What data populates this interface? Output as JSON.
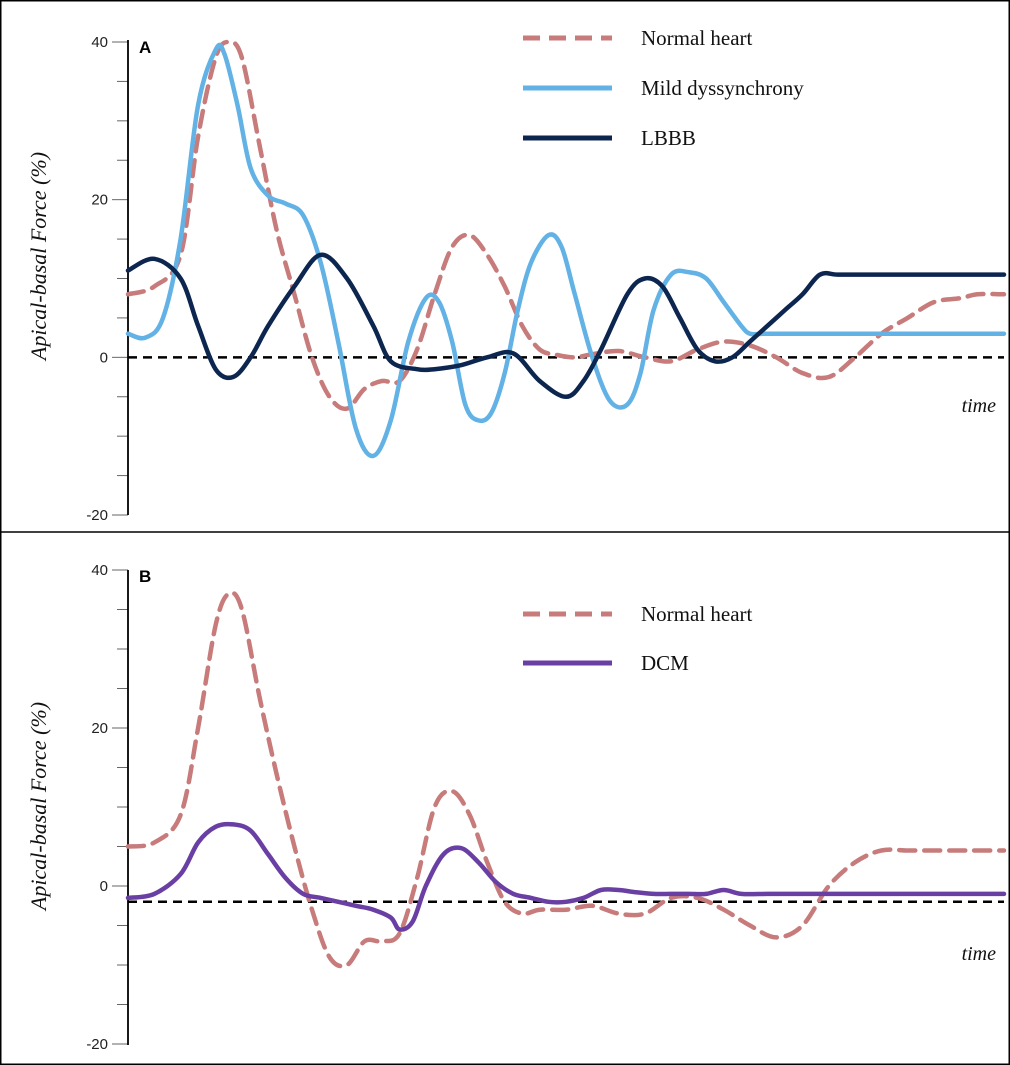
{
  "chart_data": [
    {
      "type": "line",
      "panel_label": "A",
      "ylabel": "Apical-basal Force (%)",
      "xlabel": "time",
      "ylim": [
        -20,
        40
      ],
      "yticks": [
        40,
        20,
        0,
        -20
      ],
      "xlim": [
        0,
        100
      ],
      "grid": false,
      "legend_position": "top-right",
      "baseline": {
        "value": 0,
        "style": "dashed",
        "color": "#000000"
      },
      "series": [
        {
          "name": "Normal heart",
          "color": "#c77b7b",
          "dash": true,
          "x": [
            0,
            3,
            6,
            8,
            10,
            11.5,
            13,
            15,
            17,
            19,
            21,
            23,
            25,
            27,
            29,
            31,
            33,
            35,
            37,
            39,
            41,
            43,
            45,
            47,
            49,
            51,
            53,
            56,
            59,
            62,
            65,
            68,
            71,
            74,
            77,
            80,
            83,
            86,
            89,
            92,
            95,
            97,
            100
          ],
          "y": [
            8,
            9,
            13,
            28,
            38,
            40,
            38,
            27,
            16,
            8,
            0,
            -5,
            -6.5,
            -4,
            -3,
            -3,
            1,
            8,
            14,
            15.5,
            13,
            9,
            4,
            1,
            0.3,
            0,
            0.4,
            0.8,
            0,
            -0.5,
            1,
            2,
            1.5,
            0,
            -2,
            -2.5,
            0,
            3,
            5,
            7,
            7.5,
            8,
            8
          ]
        },
        {
          "name": "Mild dyssynchrony",
          "color": "#63b2e5",
          "dash": false,
          "x": [
            0,
            2,
            4,
            6,
            8,
            10,
            11,
            12.5,
            14,
            16,
            18,
            20,
            22,
            24,
            26,
            28,
            30,
            32,
            34,
            35.5,
            37,
            38.5,
            40,
            41.5,
            43,
            44.5,
            46,
            48,
            49.5,
            51,
            53,
            55,
            57,
            58.5,
            60,
            62,
            64,
            66,
            68,
            70,
            71,
            72.5,
            74,
            76,
            78,
            80,
            82,
            84,
            86,
            88,
            91,
            94,
            97,
            100
          ],
          "y": [
            3,
            2.5,
            5,
            15,
            32,
            39,
            38.5,
            32,
            24,
            20.5,
            19.5,
            18,
            12,
            2,
            -9,
            -12.5,
            -8,
            2,
            7.5,
            7,
            2,
            -6,
            -8,
            -7,
            -2,
            6,
            12,
            15.5,
            14,
            8,
            0,
            -5.5,
            -6,
            -2,
            6,
            10.5,
            10.8,
            10,
            7,
            4,
            3,
            3,
            3,
            3,
            3,
            3,
            3,
            3,
            3,
            3,
            3,
            3,
            3,
            3
          ]
        },
        {
          "name": "LBBB",
          "color": "#0c2650",
          "dash": false,
          "x": [
            0,
            3,
            6,
            8,
            10,
            12,
            14,
            16,
            19,
            22,
            25,
            28,
            30,
            33,
            35,
            38,
            41,
            44,
            47,
            50,
            52,
            54,
            57,
            59,
            61,
            63,
            65,
            67,
            69,
            71,
            73,
            75,
            77,
            79,
            81,
            84,
            87,
            90,
            93,
            96,
            100
          ],
          "y": [
            11,
            12.5,
            10,
            4,
            -1.5,
            -2.5,
            0,
            4,
            9,
            13,
            10,
            4,
            -0.5,
            -1.5,
            -1.5,
            -1,
            0,
            0.5,
            -3,
            -5,
            -3,
            1,
            8,
            10,
            9,
            5,
            1,
            -0.5,
            0,
            2,
            4,
            6,
            8,
            10.5,
            10.5,
            10.5,
            10.5,
            10.5,
            10.5,
            10.5,
            10.5
          ]
        }
      ]
    },
    {
      "type": "line",
      "panel_label": "B",
      "ylabel": "Apical-basal Force (%)",
      "xlabel": "time",
      "ylim": [
        -20,
        40
      ],
      "yticks": [
        40,
        20,
        0,
        -20
      ],
      "xlim": [
        0,
        100
      ],
      "grid": false,
      "legend_position": "top-right",
      "baseline": {
        "value": -2,
        "style": "dashed",
        "color": "#000000"
      },
      "series": [
        {
          "name": "Normal heart",
          "color": "#c77b7b",
          "dash": true,
          "x": [
            0,
            3,
            6,
            8,
            10,
            11.5,
            13,
            15,
            17,
            19,
            21,
            23,
            25,
            27,
            29,
            31,
            33,
            35,
            37,
            39,
            41,
            43,
            45,
            47,
            50,
            53,
            56,
            59,
            62,
            65,
            68,
            71,
            74,
            77,
            80,
            83,
            86,
            89,
            92,
            95,
            97,
            100
          ],
          "y": [
            5,
            5.5,
            9,
            20,
            33,
            37,
            35,
            24,
            14,
            5,
            -3,
            -9,
            -10,
            -7,
            -7,
            -6,
            1,
            10,
            12,
            9,
            3,
            -2,
            -3.5,
            -3,
            -3,
            -2.5,
            -3.5,
            -3.5,
            -1.5,
            -1.5,
            -3,
            -5,
            -6.5,
            -5,
            0,
            3,
            4.5,
            4.5,
            4.5,
            4.5,
            4.5,
            4.5
          ]
        },
        {
          "name": "DCM",
          "color": "#6a3fa3",
          "dash": false,
          "x": [
            0,
            3,
            6,
            8,
            10,
            12,
            14,
            16,
            18,
            20,
            22,
            24,
            26,
            28,
            30,
            31,
            32.5,
            34,
            36,
            38,
            40,
            42,
            44,
            46,
            48,
            50,
            52,
            54,
            56,
            58,
            60,
            62,
            64,
            66,
            68,
            70,
            73,
            76,
            79,
            82,
            85,
            88,
            91,
            94,
            97,
            100
          ],
          "y": [
            -1.5,
            -1,
            1.5,
            5.5,
            7.5,
            7.8,
            7,
            4,
            1,
            -1,
            -1.5,
            -2,
            -2.5,
            -3,
            -4,
            -5.5,
            -4.5,
            0,
            4,
            4.8,
            3,
            0.5,
            -1,
            -1.5,
            -2,
            -2,
            -1.5,
            -0.5,
            -0.5,
            -0.8,
            -1,
            -1,
            -1,
            -1,
            -0.5,
            -1,
            -1,
            -1,
            -1,
            -1,
            -1,
            -1,
            -1,
            -1,
            -1,
            -1
          ]
        }
      ]
    }
  ]
}
